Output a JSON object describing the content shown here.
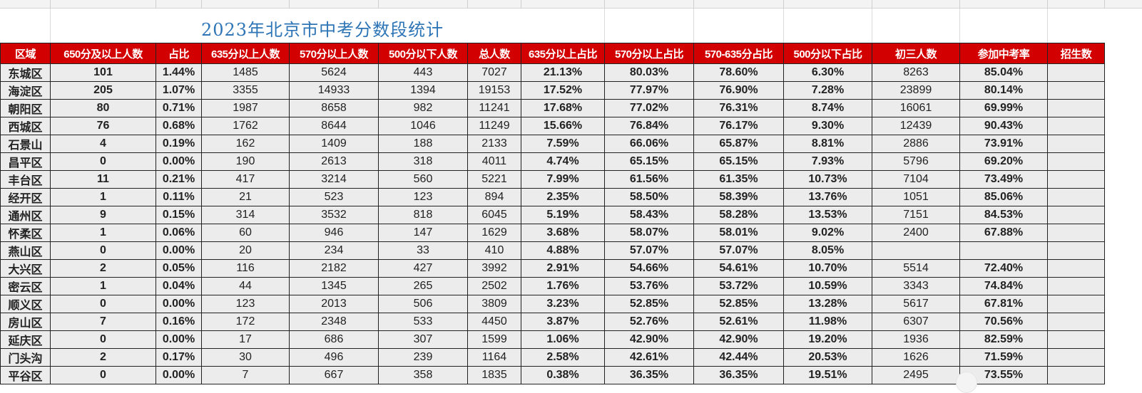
{
  "sheet": {
    "title": "2023年北京市中考分数段统计",
    "headers": [
      "区域",
      "650分及以上人数",
      "占比",
      "635分以上人数",
      "570分以上人数",
      "500分以下人数",
      "总人数",
      "635分以上占比",
      "570分以上占比",
      "570-635分占比",
      "500分以下占比",
      "初三人数",
      "参加中考率",
      "招生数"
    ],
    "rows": [
      {
        "region": "东城区",
        "c650": "101",
        "ratio": "1.44%",
        "c635": "1485",
        "c570": "5624",
        "c500": "443",
        "total": "7027",
        "p635": "21.13%",
        "p570": "80.03%",
        "p570_635": "78.60%",
        "p500": "6.30%",
        "grade3": "8263",
        "rate": "85.04%",
        "enroll": ""
      },
      {
        "region": "海淀区",
        "c650": "205",
        "ratio": "1.07%",
        "c635": "3355",
        "c570": "14933",
        "c500": "1394",
        "total": "19153",
        "p635": "17.52%",
        "p570": "77.97%",
        "p570_635": "76.90%",
        "p500": "7.28%",
        "grade3": "23899",
        "rate": "80.14%",
        "enroll": ""
      },
      {
        "region": "朝阳区",
        "c650": "80",
        "ratio": "0.71%",
        "c635": "1987",
        "c570": "8658",
        "c500": "982",
        "total": "11241",
        "p635": "17.68%",
        "p570": "77.02%",
        "p570_635": "76.31%",
        "p500": "8.74%",
        "grade3": "16061",
        "rate": "69.99%",
        "enroll": ""
      },
      {
        "region": "西城区",
        "c650": "76",
        "ratio": "0.68%",
        "c635": "1762",
        "c570": "8644",
        "c500": "1046",
        "total": "11249",
        "p635": "15.66%",
        "p570": "76.84%",
        "p570_635": "76.17%",
        "p500": "9.30%",
        "grade3": "12439",
        "rate": "90.43%",
        "enroll": ""
      },
      {
        "region": "石景山",
        "c650": "4",
        "ratio": "0.19%",
        "c635": "162",
        "c570": "1409",
        "c500": "188",
        "total": "2133",
        "p635": "7.59%",
        "p570": "66.06%",
        "p570_635": "65.87%",
        "p500": "8.81%",
        "grade3": "2886",
        "rate": "73.91%",
        "enroll": ""
      },
      {
        "region": "昌平区",
        "c650": "0",
        "ratio": "0.00%",
        "c635": "190",
        "c570": "2613",
        "c500": "318",
        "total": "4011",
        "p635": "4.74%",
        "p570": "65.15%",
        "p570_635": "65.15%",
        "p500": "7.93%",
        "grade3": "5796",
        "rate": "69.20%",
        "enroll": ""
      },
      {
        "region": "丰台区",
        "c650": "11",
        "ratio": "0.21%",
        "c635": "417",
        "c570": "3214",
        "c500": "560",
        "total": "5221",
        "p635": "7.99%",
        "p570": "61.56%",
        "p570_635": "61.35%",
        "p500": "10.73%",
        "grade3": "7104",
        "rate": "73.49%",
        "enroll": ""
      },
      {
        "region": "经开区",
        "c650": "1",
        "ratio": "0.11%",
        "c635": "21",
        "c570": "523",
        "c500": "123",
        "total": "894",
        "p635": "2.35%",
        "p570": "58.50%",
        "p570_635": "58.39%",
        "p500": "13.76%",
        "grade3": "1051",
        "rate": "85.06%",
        "enroll": ""
      },
      {
        "region": "通州区",
        "c650": "9",
        "ratio": "0.15%",
        "c635": "314",
        "c570": "3532",
        "c500": "818",
        "total": "6045",
        "p635": "5.19%",
        "p570": "58.43%",
        "p570_635": "58.28%",
        "p500": "13.53%",
        "grade3": "7151",
        "rate": "84.53%",
        "enroll": ""
      },
      {
        "region": "怀柔区",
        "c650": "1",
        "ratio": "0.06%",
        "c635": "60",
        "c570": "946",
        "c500": "147",
        "total": "1629",
        "p635": "3.68%",
        "p570": "58.07%",
        "p570_635": "58.01%",
        "p500": "9.02%",
        "grade3": "2400",
        "rate": "67.88%",
        "enroll": ""
      },
      {
        "region": "燕山区",
        "c650": "0",
        "ratio": "0.00%",
        "c635": "20",
        "c570": "234",
        "c500": "33",
        "total": "410",
        "p635": "4.88%",
        "p570": "57.07%",
        "p570_635": "57.07%",
        "p500": "8.05%",
        "grade3": "",
        "rate": "",
        "enroll": ""
      },
      {
        "region": "大兴区",
        "c650": "2",
        "ratio": "0.05%",
        "c635": "116",
        "c570": "2182",
        "c500": "427",
        "total": "3992",
        "p635": "2.91%",
        "p570": "54.66%",
        "p570_635": "54.61%",
        "p500": "10.70%",
        "grade3": "5514",
        "rate": "72.40%",
        "enroll": ""
      },
      {
        "region": "密云区",
        "c650": "1",
        "ratio": "0.04%",
        "c635": "44",
        "c570": "1345",
        "c500": "265",
        "total": "2502",
        "p635": "1.76%",
        "p570": "53.76%",
        "p570_635": "53.72%",
        "p500": "10.59%",
        "grade3": "3343",
        "rate": "74.84%",
        "enroll": ""
      },
      {
        "region": "顺义区",
        "c650": "0",
        "ratio": "0.00%",
        "c635": "123",
        "c570": "2013",
        "c500": "506",
        "total": "3809",
        "p635": "3.23%",
        "p570": "52.85%",
        "p570_635": "52.85%",
        "p500": "13.28%",
        "grade3": "5617",
        "rate": "67.81%",
        "enroll": ""
      },
      {
        "region": "房山区",
        "c650": "7",
        "ratio": "0.16%",
        "c635": "172",
        "c570": "2348",
        "c500": "533",
        "total": "4450",
        "p635": "3.87%",
        "p570": "52.76%",
        "p570_635": "52.61%",
        "p500": "11.98%",
        "grade3": "6307",
        "rate": "70.56%",
        "enroll": ""
      },
      {
        "region": "延庆区",
        "c650": "0",
        "ratio": "0.00%",
        "c635": "17",
        "c570": "686",
        "c500": "307",
        "total": "1599",
        "p635": "1.06%",
        "p570": "42.90%",
        "p570_635": "42.90%",
        "p500": "19.20%",
        "grade3": "1936",
        "rate": "82.59%",
        "enroll": ""
      },
      {
        "region": "门头沟",
        "c650": "2",
        "ratio": "0.17%",
        "c635": "30",
        "c570": "496",
        "c500": "239",
        "total": "1164",
        "p635": "2.58%",
        "p570": "42.61%",
        "p570_635": "42.44%",
        "p500": "20.53%",
        "grade3": "1626",
        "rate": "71.59%",
        "enroll": ""
      },
      {
        "region": "平谷区",
        "c650": "0",
        "ratio": "0.00%",
        "c635": "7",
        "c570": "667",
        "c500": "358",
        "total": "1835",
        "p635": "0.38%",
        "p570": "36.35%",
        "p570_635": "36.35%",
        "p500": "19.51%",
        "grade3": "2495",
        "rate": "73.55%",
        "enroll": ""
      }
    ],
    "highlight": {
      "red_ratio_rows": [
        0,
        1,
        2,
        3
      ],
      "red_pct_rows": [
        0,
        1,
        2,
        3
      ],
      "blue_p500_rows": [
        7,
        15,
        16,
        17
      ],
      "blue_rate_rows": [
        2,
        5,
        9,
        13
      ]
    },
    "colors": {
      "header_bg": "#d20000",
      "header_text": "#ffffff",
      "title": "#2e75b6",
      "red_text": "#e8141b",
      "blue_text": "#1f6fd1",
      "gold_dark": "#fccf56",
      "gold_mid": "#fde596",
      "gold_light": "#fff0c6",
      "green": "#c6f5c6",
      "grey": "#ececec"
    }
  }
}
